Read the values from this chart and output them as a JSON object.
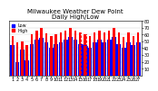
{
  "title": "Milwaukee Weather Dew Point\nDaily High/Low",
  "title_fontsize": 5.0,
  "days": [
    1,
    2,
    3,
    4,
    5,
    6,
    7,
    8,
    9,
    10,
    11,
    12,
    13,
    14,
    15,
    16,
    17,
    18,
    19,
    20,
    21,
    22,
    23,
    24,
    25,
    26,
    27
  ],
  "high_values": [
    58,
    48,
    50,
    45,
    60,
    65,
    70,
    62,
    58,
    60,
    63,
    66,
    70,
    66,
    63,
    60,
    58,
    63,
    66,
    63,
    66,
    70,
    63,
    57,
    63,
    58,
    63
  ],
  "low_values": [
    44,
    20,
    38,
    22,
    46,
    52,
    55,
    48,
    40,
    46,
    48,
    52,
    56,
    52,
    46,
    44,
    40,
    48,
    52,
    48,
    52,
    56,
    46,
    40,
    48,
    44,
    48
  ],
  "high_color": "#ff0000",
  "low_color": "#0000ff",
  "tick_fontsize": 3.5,
  "ylim": [
    0,
    80
  ],
  "yticks": [
    10,
    20,
    30,
    40,
    50,
    60,
    70,
    80
  ],
  "background_color": "#ffffff",
  "legend_high": "High",
  "legend_low": "Low",
  "bar_width": 0.45,
  "legend_fontsize": 3.5,
  "dashed_bar_indices": [
    14,
    15
  ],
  "grid_color": "#cccccc"
}
